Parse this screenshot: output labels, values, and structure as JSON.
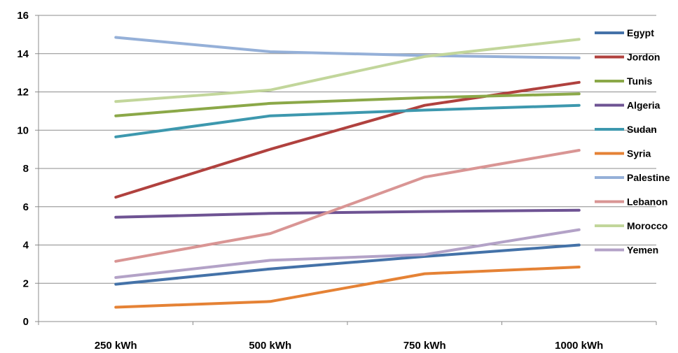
{
  "chart_data": {
    "type": "line",
    "categories": [
      "250 kWh",
      "500 kWh",
      "750 kWh",
      "1000 kWh"
    ],
    "ylim": [
      0,
      16
    ],
    "yticks": [
      0,
      2,
      4,
      6,
      8,
      10,
      12,
      14,
      16
    ],
    "grid": true,
    "legend_position": "right",
    "series": [
      {
        "name": "Egypt",
        "color": "#4472A8",
        "values": [
          1.95,
          2.75,
          3.4,
          4.0
        ]
      },
      {
        "name": "Jordon",
        "color": "#B0413E",
        "values": [
          6.5,
          9.0,
          11.3,
          12.5
        ]
      },
      {
        "name": "Tunis",
        "color": "#8BA848",
        "values": [
          10.75,
          11.4,
          11.7,
          11.9
        ]
      },
      {
        "name": "Algeria",
        "color": "#6E5393",
        "values": [
          5.45,
          5.65,
          5.75,
          5.82
        ]
      },
      {
        "name": "Sudan",
        "color": "#3D98AE",
        "values": [
          9.65,
          10.75,
          11.05,
          11.3
        ]
      },
      {
        "name": "Syria",
        "color": "#E58235",
        "values": [
          0.75,
          1.05,
          2.5,
          2.85
        ]
      },
      {
        "name": "Palestine",
        "color": "#95B0D8",
        "values": [
          14.85,
          14.1,
          13.9,
          13.78
        ]
      },
      {
        "name": "Lebanon",
        "color": "#D99594",
        "values": [
          3.15,
          4.6,
          7.55,
          8.95
        ]
      },
      {
        "name": "Morocco",
        "color": "#C2D69B",
        "values": [
          11.5,
          12.1,
          13.85,
          14.75
        ]
      },
      {
        "name": "Yemen",
        "color": "#B3A2C7",
        "values": [
          2.3,
          3.2,
          3.5,
          4.8
        ]
      }
    ]
  }
}
